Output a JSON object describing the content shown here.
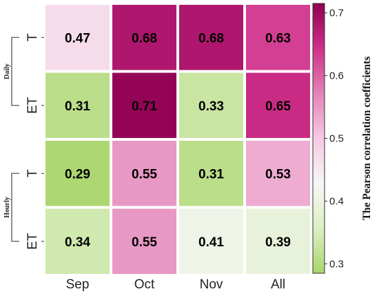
{
  "chart_data": {
    "type": "heatmap",
    "columns": [
      "Sep",
      "Oct",
      "Nov",
      "All"
    ],
    "rows": [
      {
        "group": "Daily",
        "label": "T",
        "values": [
          0.47,
          0.68,
          0.68,
          0.63
        ]
      },
      {
        "group": "Daily",
        "label": "ET",
        "values": [
          0.31,
          0.71,
          0.33,
          0.65
        ]
      },
      {
        "group": "Hourly",
        "label": "T",
        "values": [
          0.29,
          0.55,
          0.31,
          0.53
        ]
      },
      {
        "group": "Hourly",
        "label": "ET",
        "values": [
          0.34,
          0.55,
          0.41,
          0.39
        ]
      }
    ],
    "groups": [
      "Daily",
      "Hourly"
    ],
    "values_text": [
      [
        "0.47",
        "0.68",
        "0.68",
        "0.63"
      ],
      [
        "0.31",
        "0.71",
        "0.33",
        "0.65"
      ],
      [
        "0.29",
        "0.55",
        "0.31",
        "0.53"
      ],
      [
        "0.34",
        "0.55",
        "0.41",
        "0.39"
      ]
    ],
    "colorbar": {
      "label": "The Pearson correlation coefficients",
      "min": 0.285,
      "max": 0.715,
      "ticks": [
        0.3,
        0.4,
        0.5,
        0.6,
        0.7
      ],
      "tick_labels": [
        "0.3",
        "0.4",
        "0.5",
        "0.6",
        "0.7"
      ],
      "colormap": "PiYG_r",
      "stops": [
        "#a9d56c",
        "#dcefc2",
        "#f6f6f6",
        "#f6c9e3",
        "#e283b8",
        "#cf2f89",
        "#8e0152"
      ]
    }
  }
}
